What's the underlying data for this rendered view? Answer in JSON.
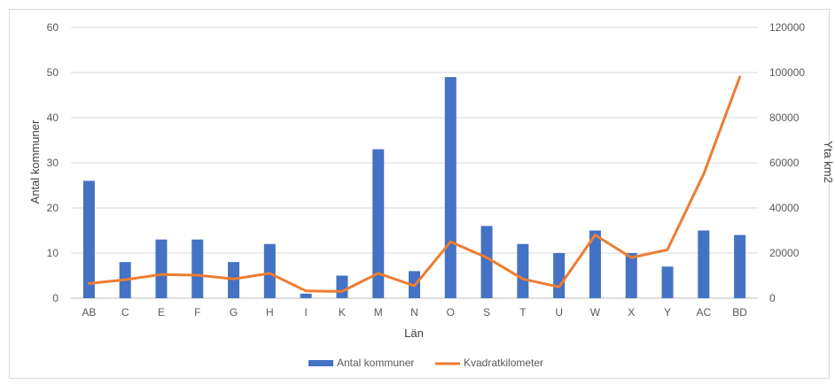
{
  "chart_data": {
    "type": "bar",
    "title": "",
    "xlabel": "Län",
    "ylabel": "Antal kommuner",
    "y2label": "Yta km2",
    "categories": [
      "AB",
      "C",
      "E",
      "F",
      "G",
      "H",
      "I",
      "K",
      "M",
      "N",
      "O",
      "S",
      "T",
      "U",
      "W",
      "X",
      "Y",
      "AC",
      "BD"
    ],
    "ylim": [
      0,
      60
    ],
    "y_ticks": [
      "0",
      "10",
      "20",
      "30",
      "40",
      "50",
      "60"
    ],
    "y2lim": [
      0,
      120000
    ],
    "y2_ticks": [
      "0",
      "20000",
      "40000",
      "60000",
      "80000",
      "100000",
      "120000"
    ],
    "grid": true,
    "legend_position": "bottom",
    "series": [
      {
        "name": "Antal kommuner",
        "type": "bar",
        "axis": "left",
        "color": "#4472c4",
        "values": [
          26,
          8,
          13,
          13,
          8,
          12,
          1,
          5,
          33,
          6,
          49,
          16,
          12,
          10,
          15,
          10,
          7,
          15,
          14
        ]
      },
      {
        "name": "Kvadratkilometer",
        "type": "line",
        "axis": "right",
        "color": "#ed7d31",
        "values": [
          6500,
          8200,
          10500,
          10200,
          8500,
          11000,
          3200,
          3000,
          11000,
          5500,
          25000,
          18000,
          8500,
          5000,
          28000,
          18000,
          21500,
          55000,
          98000
        ]
      }
    ]
  }
}
